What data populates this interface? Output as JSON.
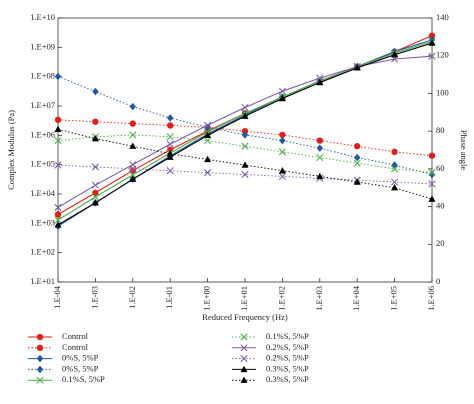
{
  "chart_data": {
    "type": "line",
    "x_label": "Reduced Frequency (Hz)",
    "y_label": "Complex Modulus (Pa)",
    "y2_label": "Phase angle",
    "x_log": true,
    "y_log": true,
    "xlim": [
      0.0001,
      1000000
    ],
    "ylim": [
      10,
      10000000000
    ],
    "y2lim": [
      0,
      140
    ],
    "x": [
      0.0001,
      0.001,
      0.01,
      0.1,
      1,
      10,
      100,
      1000,
      10000,
      100000,
      1000000
    ],
    "xticks": [
      {
        "value": 0.0001,
        "label": "1.E-04"
      },
      {
        "value": 0.001,
        "label": "1.E-03"
      },
      {
        "value": 0.01,
        "label": "1.E-02"
      },
      {
        "value": 0.1,
        "label": "1.E-01"
      },
      {
        "value": 1,
        "label": "1.E+00"
      },
      {
        "value": 10,
        "label": "1.E+01"
      },
      {
        "value": 100,
        "label": "1.E+02"
      },
      {
        "value": 1000,
        "label": "1.E+03"
      },
      {
        "value": 10000,
        "label": "1.E+04"
      },
      {
        "value": 100000,
        "label": "1.E+05"
      },
      {
        "value": 1000000,
        "label": "1.E+06"
      }
    ],
    "yticks": [
      {
        "value": 10,
        "label": "1.E+01"
      },
      {
        "value": 100,
        "label": "1.E+02"
      },
      {
        "value": 1000,
        "label": "1.E+03"
      },
      {
        "value": 10000,
        "label": "1.E+04"
      },
      {
        "value": 100000,
        "label": "1.E+05"
      },
      {
        "value": 1000000,
        "label": "1.E+06"
      },
      {
        "value": 10000000,
        "label": "1.E+07"
      },
      {
        "value": 100000000,
        "label": "1.E+08"
      },
      {
        "value": 1000000000,
        "label": "1.E+09"
      },
      {
        "value": 10000000000,
        "label": "1.E+10"
      }
    ],
    "y2ticks": [
      0,
      20,
      40,
      60,
      80,
      100,
      120,
      140
    ],
    "series": [
      {
        "name": "Control",
        "color": "#e0201b",
        "marker": "circle",
        "line": "solid",
        "values": [
          2000,
          11000,
          63000,
          320000,
          1400000,
          5600000,
          20000000,
          71000000,
          220000000,
          710000000,
          2500000000
        ]
      },
      {
        "name": "Control",
        "color": "#e0201b",
        "marker": "circle",
        "line": "dotted",
        "axis": "y2",
        "values": [
          86,
          85,
          84,
          83,
          82,
          80,
          78,
          75,
          72,
          69,
          67
        ]
      },
      {
        "name": "0%S, 5%P",
        "color": "#1f5aa6",
        "marker": "diamond",
        "line": "solid",
        "values": [
          790,
          5000,
          32000,
          200000,
          1100000,
          5000000,
          20000000,
          71000000,
          220000000,
          710000000,
          1800000000
        ]
      },
      {
        "name": "0%S, 5%P",
        "color": "#1f5aa6",
        "marker": "diamond",
        "line": "dotted",
        "axis": "y2",
        "values": [
          109,
          101,
          93,
          87,
          82,
          78,
          75,
          71,
          66,
          62,
          57
        ]
      },
      {
        "name": "0.1%S, 5%P",
        "color": "#4fae4a",
        "marker": "x",
        "line": "solid",
        "values": [
          1300,
          7900,
          45000,
          250000,
          1300000,
          5600000,
          20000000,
          71000000,
          220000000,
          630000000,
          1600000000
        ]
      },
      {
        "name": "0.1%S, 5%P",
        "color": "#4fae4a",
        "marker": "x",
        "line": "dotted",
        "axis": "y2",
        "values": [
          75,
          77,
          78,
          77,
          75,
          72,
          69,
          66,
          63,
          60,
          58
        ]
      },
      {
        "name": "0.2%S, 5%P",
        "color": "#7f5fa8",
        "marker": "x",
        "line": "solid",
        "values": [
          3500,
          20000,
          100000,
          500000,
          2200000,
          8900000,
          32000000,
          89000000,
          220000000,
          400000000,
          500000000
        ]
      },
      {
        "name": "0.2%S, 5%P",
        "color": "#7f5fa8",
        "marker": "x",
        "line": "dotted",
        "axis": "y2",
        "values": [
          62,
          61,
          60,
          59,
          58,
          57,
          56,
          55,
          54,
          53,
          52
        ]
      },
      {
        "name": "0.3%S, 5%P",
        "color": "#000000",
        "marker": "triangle",
        "line": "solid",
        "values": [
          890,
          5000,
          32000,
          180000,
          1000000,
          4500000,
          18000000,
          63000000,
          200000000,
          560000000,
          1400000000
        ]
      },
      {
        "name": "0.3%S, 5%P",
        "color": "#000000",
        "marker": "triangle",
        "line": "dotted",
        "axis": "y2",
        "values": [
          81,
          76,
          72,
          68,
          65,
          62,
          59,
          56,
          53,
          50,
          44
        ]
      }
    ]
  }
}
